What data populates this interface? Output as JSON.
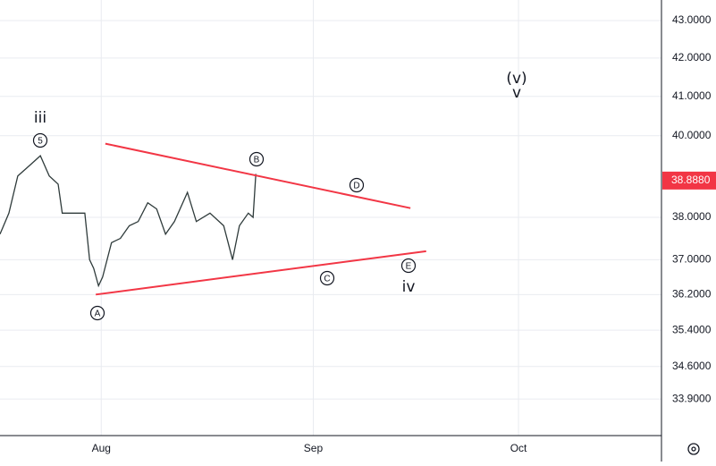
{
  "chart_data": {
    "type": "line",
    "log_scale": true,
    "grid": true,
    "x": [
      16.2,
      17.5,
      18.8,
      20.8,
      22.1,
      23.4,
      24.7,
      25.3,
      26.6,
      28.6,
      29.3,
      29.9,
      30.6,
      31.2,
      32.5,
      33.8,
      35.1,
      36.4,
      37.8,
      39.1,
      40.4,
      41.7,
      43.6,
      44.9,
      46.9,
      48.9,
      50.2,
      51.2,
      52.5,
      53.2,
      53.6
    ],
    "series": [
      {
        "color": "#2f3b3b",
        "values": [
          37.6,
          38.1,
          39.0,
          39.3,
          39.5,
          39.0,
          38.8,
          38.1,
          38.1,
          38.1,
          37.0,
          36.8,
          36.4,
          36.6,
          37.4,
          37.5,
          37.8,
          37.9,
          38.35,
          38.2,
          37.6,
          37.9,
          38.6,
          37.9,
          38.1,
          37.8,
          37.0,
          37.8,
          38.1,
          38.0,
          39.05
        ]
      }
    ],
    "trendlines": [
      {
        "color": "#f23645",
        "x": [
          31.6,
          76.2
        ],
        "values": [
          39.8,
          38.22
        ]
      },
      {
        "color": "#f23645",
        "x": [
          30.2,
          78.5
        ],
        "values": [
          36.2,
          37.2
        ]
      }
    ],
    "annotations": [
      {
        "text": "iii",
        "circled": false
      },
      {
        "text": "5",
        "circled": true
      },
      {
        "text": "A",
        "circled": true
      },
      {
        "text": "B",
        "circled": true
      },
      {
        "text": "C",
        "circled": true
      },
      {
        "text": "D",
        "circled": true
      },
      {
        "text": "E",
        "circled": true
      },
      {
        "text": "iv",
        "circled": false
      },
      {
        "text": "(v)",
        "circled": false
      },
      {
        "text": "v",
        "circled": false
      }
    ],
    "last_price": {
      "value": 38.888,
      "label": "38.8880",
      "color": "#f23645"
    },
    "xlim": [
      16.2,
      112.9
    ],
    "xticks": [
      {
        "value": 31,
        "label": "Aug"
      },
      {
        "value": 62,
        "label": "Sep"
      },
      {
        "value": 92,
        "label": "Oct"
      }
    ],
    "ylim": [
      33.13,
      43.56
    ],
    "yticks": [
      {
        "value": 43,
        "label": "43.0000"
      },
      {
        "value": 42,
        "label": "42.0000"
      },
      {
        "value": 41,
        "label": "41.0000"
      },
      {
        "value": 40,
        "label": "40.0000"
      },
      {
        "value": 38,
        "label": "38.0000"
      },
      {
        "value": 37,
        "label": "37.0000"
      },
      {
        "value": 36.2,
        "label": "36.2000"
      },
      {
        "value": 35.4,
        "label": "35.4000"
      },
      {
        "value": 34.6,
        "label": "34.6000"
      },
      {
        "value": 33.9,
        "label": "33.9000"
      }
    ]
  }
}
